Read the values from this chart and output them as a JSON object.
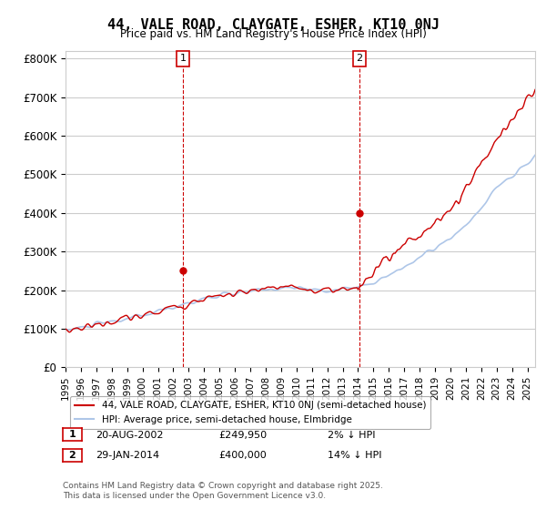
{
  "title": "44, VALE ROAD, CLAYGATE, ESHER, KT10 0NJ",
  "subtitle": "Price paid vs. HM Land Registry's House Price Index (HPI)",
  "ylabel_ticks": [
    "£0",
    "£100K",
    "£200K",
    "£300K",
    "£400K",
    "£500K",
    "£600K",
    "£700K",
    "£800K"
  ],
  "ytick_values": [
    0,
    100000,
    200000,
    300000,
    400000,
    500000,
    600000,
    700000,
    800000
  ],
  "ylim": [
    0,
    820000
  ],
  "xlim_start": 1995.0,
  "xlim_end": 2025.5,
  "hpi_color": "#aec6e8",
  "price_color": "#cc0000",
  "marker1_x": 2002.64,
  "marker1_y": 249950,
  "marker2_x": 2014.08,
  "marker2_y": 400000,
  "annotation1_label": "1",
  "annotation2_label": "2",
  "legend_line1": "44, VALE ROAD, CLAYGATE, ESHER, KT10 0NJ (semi-detached house)",
  "legend_line2": "HPI: Average price, semi-detached house, Elmbridge",
  "table_row1": [
    "1",
    "20-AUG-2002",
    "£249,950",
    "2% ↓ HPI"
  ],
  "table_row2": [
    "2",
    "29-JAN-2014",
    "£400,000",
    "14% ↓ HPI"
  ],
  "footnote": "Contains HM Land Registry data © Crown copyright and database right 2025.\nThis data is licensed under the Open Government Licence v3.0.",
  "background_color": "#ffffff",
  "plot_bg_color": "#ffffff",
  "grid_color": "#cccccc"
}
